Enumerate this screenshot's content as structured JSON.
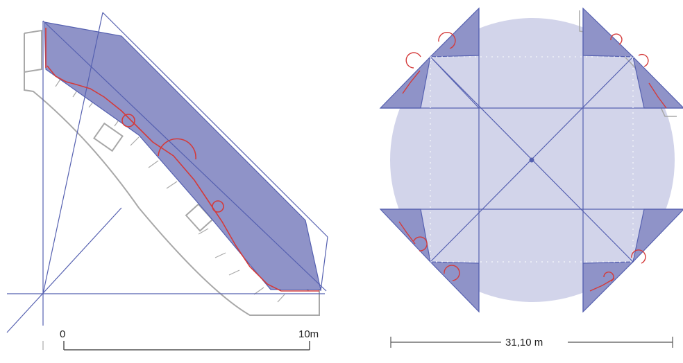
{
  "left_plan": {
    "scale_start_label": "0",
    "scale_end_label": "10m"
  },
  "right_plan": {
    "dimension_label": "31,10 m"
  },
  "colors": {
    "construction_line": "#5560b0",
    "fill_dark": "#8f93c8",
    "fill_light": "#d2d4ea",
    "wall_outline": "#a8a8a8",
    "red_trace": "#d43a3a"
  }
}
